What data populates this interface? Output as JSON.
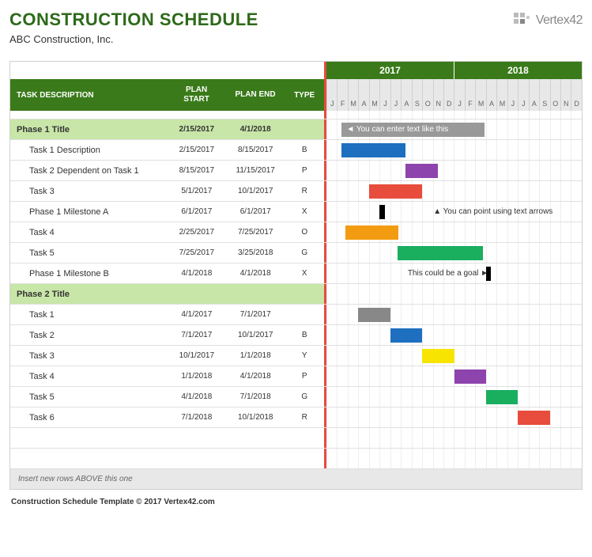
{
  "title": "CONSTRUCTION SCHEDULE",
  "subtitle": "ABC Construction, Inc.",
  "logo_text": "Vertex42",
  "footer": "Construction Schedule Template © 2017 Vertex42.com",
  "insert_note": "Insert new rows ABOVE this one",
  "colors": {
    "header_green": "#3a7a1a",
    "title_green": "#2d6a1a",
    "phase_bg": "#c8e6a8",
    "accent_red": "#e74c3c",
    "grid": "#eeeeee",
    "border": "#d0d0d0"
  },
  "columns": {
    "desc": "TASK DESCRIPTION",
    "start": "PLAN START",
    "end": "PLAN END",
    "type": "TYPE"
  },
  "timeline": {
    "years": [
      "2017",
      "2018"
    ],
    "months": [
      "J",
      "F",
      "M",
      "A",
      "M",
      "J",
      "J",
      "A",
      "S",
      "O",
      "N",
      "D",
      "J",
      "F",
      "M",
      "A",
      "M",
      "J",
      "J",
      "A",
      "S",
      "O",
      "N",
      "D"
    ],
    "start_month_index": 0,
    "total_months": 24
  },
  "type_colors": {
    "B": "#1e6fc0",
    "P": "#8e44ad",
    "R": "#e74c3c",
    "X": "#000000",
    "O": "#f39c12",
    "G": "#1aae5f",
    "Y": "#f7e400",
    "": "#888888"
  },
  "rows": [
    {
      "kind": "phase",
      "desc": "Phase 1 Title",
      "start": "2/15/2017",
      "end": "4/1/2018",
      "type": "",
      "annotation": {
        "text": "◄ You can enter text like this",
        "left_pct": 6,
        "width_pct": 56,
        "bg": true
      }
    },
    {
      "kind": "task",
      "desc": "Task 1 Description",
      "start": "2/15/2017",
      "end": "8/15/2017",
      "type": "B",
      "bar": {
        "left_pct": 6,
        "width_pct": 25,
        "color": "#1e6fc0"
      }
    },
    {
      "kind": "task",
      "desc": "Task 2 Dependent on Task 1",
      "start": "8/15/2017",
      "end": "11/15/2017",
      "type": "P",
      "bar": {
        "left_pct": 31,
        "width_pct": 12.5,
        "color": "#8e44ad"
      }
    },
    {
      "kind": "task",
      "desc": "Task 3",
      "start": "5/1/2017",
      "end": "10/1/2017",
      "type": "R",
      "bar": {
        "left_pct": 16.7,
        "width_pct": 20.8,
        "color": "#e74c3c"
      }
    },
    {
      "kind": "task",
      "desc": "Phase 1 Milestone A",
      "start": "6/1/2017",
      "end": "6/1/2017",
      "type": "X",
      "bar": {
        "left_pct": 20.8,
        "width_pct": 2,
        "color": "#000000"
      },
      "annotation": {
        "text": "▲ You can point using text arrows",
        "left_pct": 40,
        "bg": false
      }
    },
    {
      "kind": "task",
      "desc": "Task 4",
      "start": "2/25/2017",
      "end": "7/25/2017",
      "type": "O",
      "bar": {
        "left_pct": 7.5,
        "width_pct": 20.8,
        "color": "#f39c12"
      }
    },
    {
      "kind": "task",
      "desc": "Task 5",
      "start": "7/25/2017",
      "end": "3/25/2018",
      "type": "G",
      "bar": {
        "left_pct": 28,
        "width_pct": 33.3,
        "color": "#1aae5f"
      }
    },
    {
      "kind": "task",
      "desc": "Phase 1 Milestone B",
      "start": "4/1/2018",
      "end": "4/1/2018",
      "type": "X",
      "bar": {
        "left_pct": 62.5,
        "width_pct": 2,
        "color": "#000000"
      },
      "annotation": {
        "text": "This could be a goal ►",
        "left_pct": 30,
        "bg": false
      }
    },
    {
      "kind": "phase",
      "desc": "Phase 2 Title",
      "start": "",
      "end": "",
      "type": ""
    },
    {
      "kind": "task",
      "desc": "Task 1",
      "start": "4/1/2017",
      "end": "7/1/2017",
      "type": "",
      "bar": {
        "left_pct": 12.5,
        "width_pct": 12.5,
        "color": "#888888"
      }
    },
    {
      "kind": "task",
      "desc": "Task 2",
      "start": "7/1/2017",
      "end": "10/1/2017",
      "type": "B",
      "bar": {
        "left_pct": 25,
        "width_pct": 12.5,
        "color": "#1e6fc0"
      }
    },
    {
      "kind": "task",
      "desc": "Task 3",
      "start": "10/1/2017",
      "end": "1/1/2018",
      "type": "Y",
      "bar": {
        "left_pct": 37.5,
        "width_pct": 12.5,
        "color": "#f7e400"
      }
    },
    {
      "kind": "task",
      "desc": "Task 4",
      "start": "1/1/2018",
      "end": "4/1/2018",
      "type": "P",
      "bar": {
        "left_pct": 50,
        "width_pct": 12.5,
        "color": "#8e44ad"
      }
    },
    {
      "kind": "task",
      "desc": "Task 5",
      "start": "4/1/2018",
      "end": "7/1/2018",
      "type": "G",
      "bar": {
        "left_pct": 62.5,
        "width_pct": 12.5,
        "color": "#1aae5f"
      }
    },
    {
      "kind": "task",
      "desc": "Task 6",
      "start": "7/1/2018",
      "end": "10/1/2018",
      "type": "R",
      "bar": {
        "left_pct": 75,
        "width_pct": 12.5,
        "color": "#e74c3c"
      }
    },
    {
      "kind": "empty"
    },
    {
      "kind": "empty"
    }
  ]
}
